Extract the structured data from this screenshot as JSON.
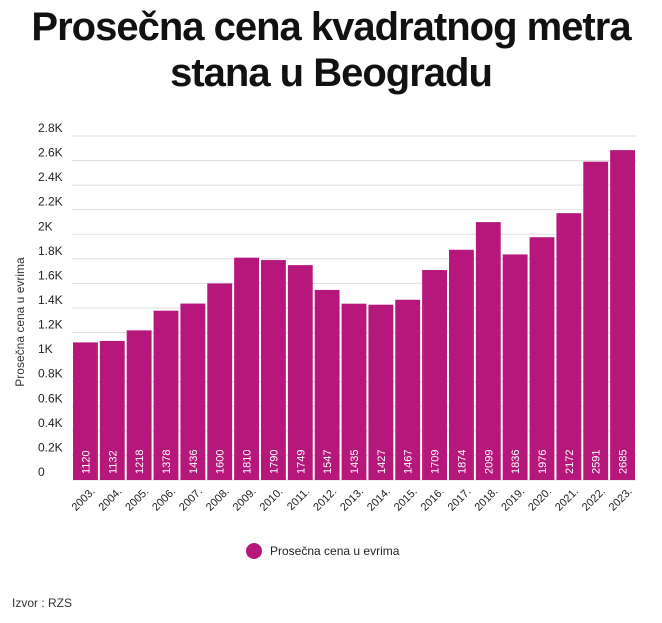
{
  "title_line1": "Prosečna cena kvadratnog metra",
  "title_line2": "stana u Beogradu",
  "source": "Izvor : RZS",
  "colors": {
    "bar": "#b5177a",
    "grid": "#dddddd",
    "bar_label": "#ffffff"
  },
  "chart_data": {
    "type": "bar",
    "title": "Prosečna cena kvadratnog metra stana u Beogradu",
    "xlabel": "",
    "ylabel": "Prosečna cena u evrima",
    "ylim": [
      0,
      2800
    ],
    "grid": true,
    "legend_position": "bottom-center",
    "y_ticks": [
      0,
      200,
      400,
      600,
      800,
      1000,
      1200,
      1400,
      1600,
      1800,
      2000,
      2200,
      2400,
      2600,
      2800
    ],
    "y_tick_labels": [
      "0",
      "0.2K",
      "0.4K",
      "0.6K",
      "0.8K",
      "1K",
      "1.2K",
      "1.4K",
      "1.6K",
      "1.8K",
      "2K",
      "2.2K",
      "2.4K",
      "2.6K",
      "2.8K"
    ],
    "categories": [
      "2003.",
      "2004.",
      "2005.",
      "2006.",
      "2007.",
      "2008.",
      "2009.",
      "2010.",
      "2011.",
      "2012.",
      "2013.",
      "2014.",
      "2015.",
      "2016.",
      "2017.",
      "2018.",
      "2019.",
      "2020.",
      "2021.",
      "2022.",
      "2023."
    ],
    "series": [
      {
        "name": "Prosečna cena u evrima",
        "values": [
          1120,
          1132,
          1218,
          1378,
          1436,
          1600,
          1810,
          1790,
          1749,
          1547,
          1435,
          1427,
          1467,
          1709,
          1874,
          2099,
          1836,
          1976,
          2172,
          2591,
          2685
        ]
      }
    ]
  }
}
